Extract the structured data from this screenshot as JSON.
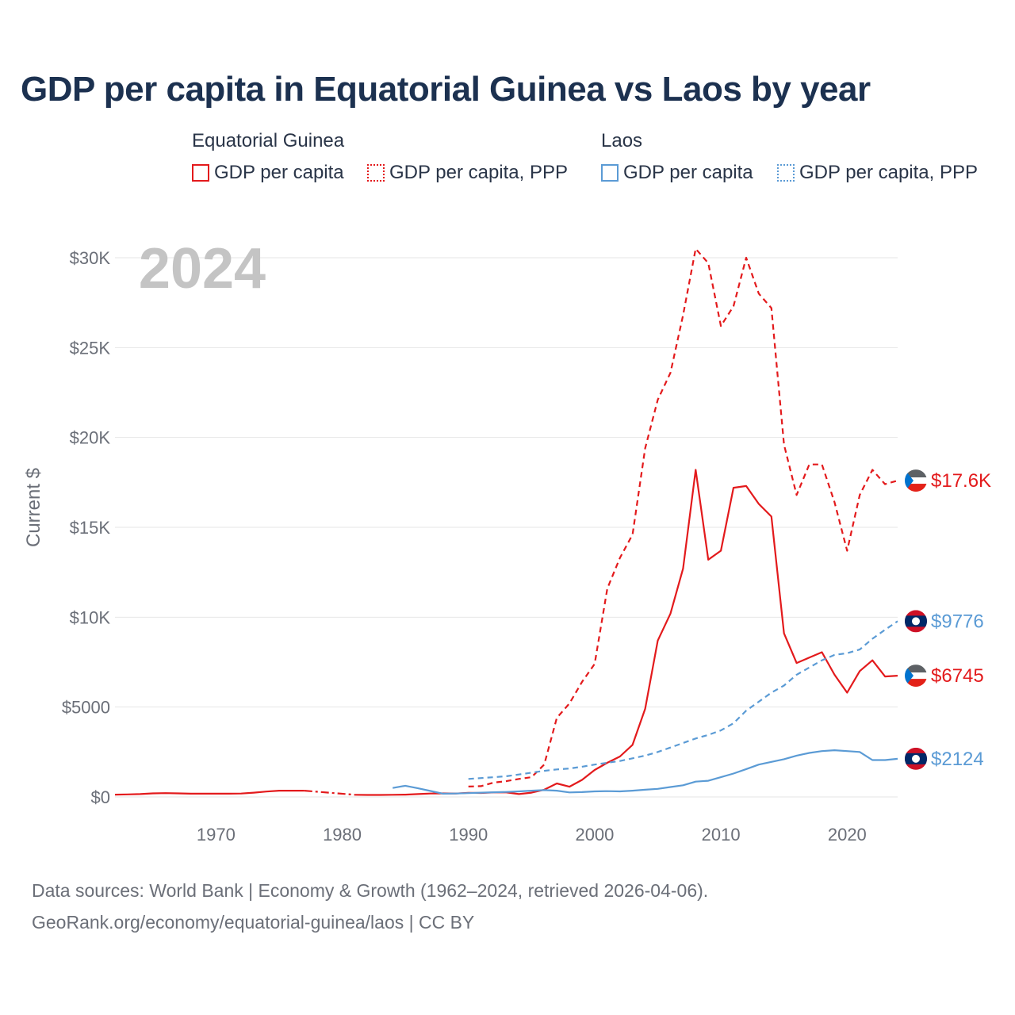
{
  "title": "GDP per capita in Equatorial Guinea vs Laos by year",
  "legend": {
    "groups": [
      {
        "name": "Equatorial Guinea",
        "color": "#e31a1c",
        "items": [
          "GDP per capita",
          "GDP per capita, PPP"
        ]
      },
      {
        "name": "Laos",
        "color": "#5b9bd5",
        "items": [
          "GDP per capita",
          "GDP per capita, PPP"
        ]
      }
    ]
  },
  "year_label": "2024",
  "footer": {
    "line1": "Data sources: World Bank | Economy & Growth (1962–2024, retrieved 2026-04-06).",
    "line2": "GeoRank.org/economy/equatorial-guinea/laos | CC BY"
  },
  "chart_data": {
    "type": "line",
    "title": "GDP per capita in Equatorial Guinea vs Laos by year",
    "xlabel": "",
    "ylabel": "Current $",
    "xlim": [
      1962,
      2024
    ],
    "ylim": [
      0,
      30000
    ],
    "x_ticks": [
      1970,
      1980,
      1990,
      2000,
      2010,
      2020
    ],
    "y_ticks": [
      0,
      5000,
      10000,
      15000,
      20000,
      25000,
      30000
    ],
    "y_tick_labels": [
      "$0",
      "$5000",
      "$10K",
      "$15K",
      "$20K",
      "$25K",
      "$30K"
    ],
    "grid": true,
    "series": [
      {
        "name": "Equatorial Guinea — GDP per capita",
        "color": "#e31a1c",
        "dash": "solid",
        "points": [
          [
            1962,
            130
          ],
          [
            1963,
            140
          ],
          [
            1964,
            160
          ],
          [
            1965,
            200
          ],
          [
            1966,
            210
          ],
          [
            1967,
            200
          ],
          [
            1968,
            180
          ],
          [
            1969,
            180
          ],
          [
            1970,
            180
          ],
          [
            1971,
            180
          ],
          [
            1972,
            190
          ],
          [
            1973,
            240
          ],
          [
            1974,
            300
          ],
          [
            1975,
            350
          ],
          [
            1976,
            350
          ],
          [
            1977,
            350
          ],
          [
            null,
            null
          ],
          [
            1981,
            120
          ],
          [
            1982,
            110
          ],
          [
            1983,
            110
          ],
          [
            1984,
            120
          ],
          [
            1985,
            130
          ],
          [
            1986,
            160
          ],
          [
            1987,
            190
          ],
          [
            1988,
            200
          ],
          [
            1989,
            190
          ],
          [
            1990,
            230
          ],
          [
            1991,
            220
          ],
          [
            1992,
            250
          ],
          [
            1993,
            250
          ],
          [
            1994,
            160
          ],
          [
            1995,
            240
          ],
          [
            1996,
            400
          ],
          [
            1997,
            750
          ],
          [
            1998,
            570
          ],
          [
            1999,
            950
          ],
          [
            2000,
            1500
          ],
          [
            2001,
            1900
          ],
          [
            2002,
            2250
          ],
          [
            2003,
            2900
          ],
          [
            2004,
            4900
          ],
          [
            2005,
            8700
          ],
          [
            2006,
            10200
          ],
          [
            2007,
            12700
          ],
          [
            2008,
            18200
          ],
          [
            2009,
            13200
          ],
          [
            2010,
            13700
          ],
          [
            2011,
            17200
          ],
          [
            2012,
            17300
          ],
          [
            2013,
            16300
          ],
          [
            2014,
            15600
          ],
          [
            2015,
            9100
          ],
          [
            2016,
            7450
          ],
          [
            2017,
            7750
          ],
          [
            2018,
            8050
          ],
          [
            2019,
            6800
          ],
          [
            2020,
            5800
          ],
          [
            2021,
            7000
          ],
          [
            2022,
            7600
          ],
          [
            2023,
            6700
          ],
          [
            2024,
            6745
          ]
        ]
      },
      {
        "name": "Equatorial Guinea — connector",
        "color": "#e31a1c",
        "dash": "dashdot",
        "points": [
          [
            1977,
            350
          ],
          [
            1981,
            120
          ]
        ]
      },
      {
        "name": "Equatorial Guinea — GDP per capita, PPP",
        "color": "#e31a1c",
        "dash": "dashed",
        "points": [
          [
            1990,
            580
          ],
          [
            1991,
            600
          ],
          [
            1992,
            800
          ],
          [
            1993,
            880
          ],
          [
            1994,
            1000
          ],
          [
            1995,
            1100
          ],
          [
            1996,
            1800
          ],
          [
            1997,
            4400
          ],
          [
            1998,
            5200
          ],
          [
            1999,
            6400
          ],
          [
            2000,
            7400
          ],
          [
            2001,
            11600
          ],
          [
            2002,
            13300
          ],
          [
            2003,
            14600
          ],
          [
            2004,
            19400
          ],
          [
            2005,
            22100
          ],
          [
            2006,
            23600
          ],
          [
            2007,
            26800
          ],
          [
            2008,
            30500
          ],
          [
            2009,
            29700
          ],
          [
            2010,
            26200
          ],
          [
            2011,
            27300
          ],
          [
            2012,
            30000
          ],
          [
            2013,
            28000
          ],
          [
            2014,
            27200
          ],
          [
            2015,
            19600
          ],
          [
            2016,
            16800
          ],
          [
            2017,
            18500
          ],
          [
            2018,
            18500
          ],
          [
            2019,
            16400
          ],
          [
            2020,
            13700
          ],
          [
            2021,
            16800
          ],
          [
            2022,
            18200
          ],
          [
            2023,
            17400
          ],
          [
            2024,
            17600
          ]
        ]
      },
      {
        "name": "Laos — GDP per capita",
        "color": "#5b9bd5",
        "dash": "solid",
        "points": [
          [
            1984,
            500
          ],
          [
            1985,
            620
          ],
          [
            1986,
            480
          ],
          [
            1987,
            330
          ],
          [
            1988,
            180
          ],
          [
            1989,
            190
          ],
          [
            1990,
            210
          ],
          [
            1991,
            240
          ],
          [
            1992,
            260
          ],
          [
            1993,
            280
          ],
          [
            1994,
            310
          ],
          [
            1995,
            350
          ],
          [
            1996,
            380
          ],
          [
            1997,
            350
          ],
          [
            1998,
            250
          ],
          [
            1999,
            270
          ],
          [
            2000,
            310
          ],
          [
            2001,
            320
          ],
          [
            2002,
            310
          ],
          [
            2003,
            350
          ],
          [
            2004,
            400
          ],
          [
            2005,
            450
          ],
          [
            2006,
            550
          ],
          [
            2007,
            650
          ],
          [
            2008,
            850
          ],
          [
            2009,
            900
          ],
          [
            2010,
            1100
          ],
          [
            2011,
            1300
          ],
          [
            2012,
            1550
          ],
          [
            2013,
            1800
          ],
          [
            2014,
            1950
          ],
          [
            2015,
            2100
          ],
          [
            2016,
            2300
          ],
          [
            2017,
            2450
          ],
          [
            2018,
            2550
          ],
          [
            2019,
            2600
          ],
          [
            2020,
            2550
          ],
          [
            2021,
            2500
          ],
          [
            2022,
            2050
          ],
          [
            2023,
            2050
          ],
          [
            2024,
            2124
          ]
        ]
      },
      {
        "name": "Laos — GDP per capita, PPP",
        "color": "#5b9bd5",
        "dash": "dashed",
        "points": [
          [
            1990,
            1000
          ],
          [
            1991,
            1050
          ],
          [
            1992,
            1100
          ],
          [
            1993,
            1150
          ],
          [
            1994,
            1250
          ],
          [
            1995,
            1350
          ],
          [
            1996,
            1450
          ],
          [
            1997,
            1530
          ],
          [
            1998,
            1580
          ],
          [
            1999,
            1680
          ],
          [
            2000,
            1800
          ],
          [
            2001,
            1900
          ],
          [
            2002,
            2000
          ],
          [
            2003,
            2150
          ],
          [
            2004,
            2300
          ],
          [
            2005,
            2500
          ],
          [
            2006,
            2750
          ],
          [
            2007,
            3000
          ],
          [
            2008,
            3250
          ],
          [
            2009,
            3450
          ],
          [
            2010,
            3700
          ],
          [
            2011,
            4100
          ],
          [
            2012,
            4800
          ],
          [
            2013,
            5300
          ],
          [
            2014,
            5800
          ],
          [
            2015,
            6200
          ],
          [
            2016,
            6800
          ],
          [
            2017,
            7200
          ],
          [
            2018,
            7600
          ],
          [
            2019,
            7900
          ],
          [
            2020,
            8000
          ],
          [
            2021,
            8200
          ],
          [
            2022,
            8800
          ],
          [
            2023,
            9300
          ],
          [
            2024,
            9776
          ]
        ]
      }
    ],
    "end_labels": [
      {
        "text": "$17.6K",
        "value": 17600,
        "color": "#e31a1c",
        "flag": "equatorial-guinea"
      },
      {
        "text": "$9776",
        "value": 9776,
        "color": "#5b9bd5",
        "flag": "laos"
      },
      {
        "text": "$6745",
        "value": 6745,
        "color": "#e31a1c",
        "flag": "equatorial-guinea"
      },
      {
        "text": "$2124",
        "value": 2124,
        "color": "#5b9bd5",
        "flag": "laos"
      }
    ]
  }
}
